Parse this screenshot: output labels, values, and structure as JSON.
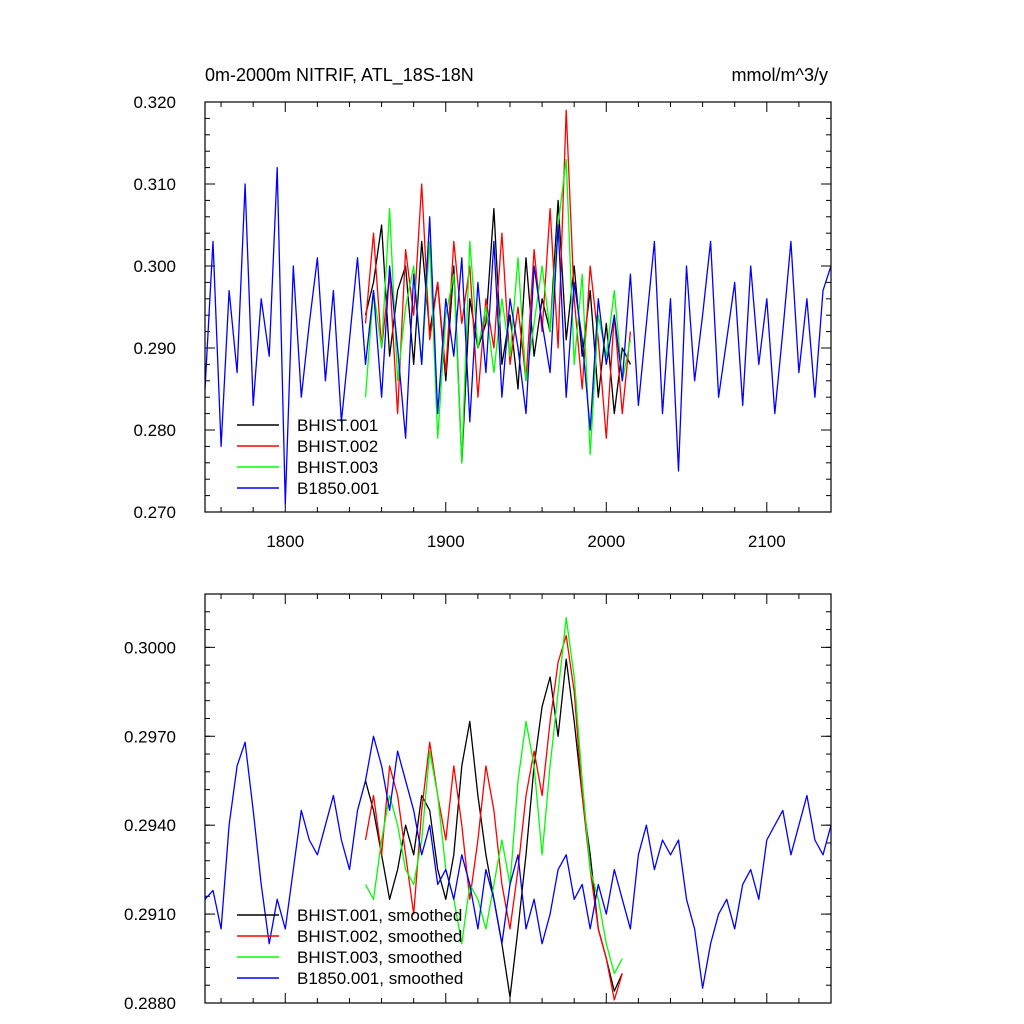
{
  "chart_data": [
    {
      "type": "line",
      "title": "0m-2000m NITRIF, ATL_18S-18N",
      "units": "mmol/m^3/y",
      "xlim": [
        1750,
        2140
      ],
      "ylim": [
        0.27,
        0.32
      ],
      "xticks": [
        1800,
        1900,
        2000,
        2100
      ],
      "xtick_labels": [
        "1800",
        "1900",
        "2000",
        "2100"
      ],
      "yticks": [
        0.27,
        0.28,
        0.29,
        0.3,
        0.31,
        0.32
      ],
      "ytick_labels": [
        "0.270",
        "0.280",
        "0.290",
        "0.300",
        "0.310",
        "0.320"
      ],
      "grid": false,
      "legend_position": "bottom-left",
      "series": [
        {
          "name": "BHIST.001",
          "color": "#000000",
          "x": [
            1850,
            1855,
            1860,
            1865,
            1870,
            1875,
            1880,
            1885,
            1890,
            1895,
            1900,
            1905,
            1910,
            1915,
            1920,
            1925,
            1930,
            1935,
            1940,
            1945,
            1950,
            1955,
            1960,
            1965,
            1970,
            1975,
            1980,
            1985,
            1990,
            1995,
            2000,
            2005,
            2010,
            2015
          ],
          "values": [
            0.294,
            0.298,
            0.305,
            0.289,
            0.297,
            0.3,
            0.288,
            0.303,
            0.292,
            0.298,
            0.286,
            0.3,
            0.276,
            0.296,
            0.29,
            0.293,
            0.307,
            0.288,
            0.294,
            0.285,
            0.301,
            0.289,
            0.296,
            0.292,
            0.308,
            0.291,
            0.3,
            0.289,
            0.297,
            0.284,
            0.293,
            0.282,
            0.29,
            0.288
          ]
        },
        {
          "name": "BHIST.002",
          "color": "#ff0000",
          "x": [
            1850,
            1855,
            1860,
            1865,
            1870,
            1875,
            1880,
            1885,
            1890,
            1895,
            1900,
            1905,
            1910,
            1915,
            1920,
            1925,
            1930,
            1935,
            1940,
            1945,
            1950,
            1955,
            1960,
            1965,
            1970,
            1975,
            1980,
            1985,
            1990,
            1995,
            2000,
            2005,
            2010,
            2015
          ],
          "values": [
            0.293,
            0.304,
            0.29,
            0.299,
            0.282,
            0.302,
            0.294,
            0.31,
            0.291,
            0.298,
            0.287,
            0.303,
            0.293,
            0.3,
            0.284,
            0.296,
            0.29,
            0.304,
            0.288,
            0.295,
            0.286,
            0.302,
            0.292,
            0.307,
            0.29,
            0.319,
            0.296,
            0.285,
            0.3,
            0.291,
            0.279,
            0.294,
            0.282,
            0.292
          ]
        },
        {
          "name": "BHIST.003",
          "color": "#00ff00",
          "x": [
            1850,
            1855,
            1860,
            1865,
            1870,
            1875,
            1880,
            1885,
            1890,
            1895,
            1900,
            1905,
            1910,
            1915,
            1920,
            1925,
            1930,
            1935,
            1940,
            1945,
            1950,
            1955,
            1960,
            1965,
            1970,
            1975,
            1980,
            1985,
            1990,
            1995,
            2000,
            2005,
            2010,
            2015
          ],
          "values": [
            0.284,
            0.297,
            0.29,
            0.307,
            0.286,
            0.295,
            0.3,
            0.288,
            0.303,
            0.279,
            0.294,
            0.299,
            0.276,
            0.303,
            0.29,
            0.295,
            0.287,
            0.296,
            0.289,
            0.301,
            0.286,
            0.293,
            0.3,
            0.292,
            0.305,
            0.313,
            0.288,
            0.299,
            0.277,
            0.294,
            0.289,
            0.297,
            0.286,
            0.291
          ]
        },
        {
          "name": "B1850.001",
          "color": "#0000ff",
          "x": [
            1750,
            1755,
            1760,
            1765,
            1770,
            1775,
            1780,
            1785,
            1790,
            1795,
            1800,
            1805,
            1810,
            1815,
            1820,
            1825,
            1830,
            1835,
            1840,
            1845,
            1850,
            1855,
            1860,
            1865,
            1870,
            1875,
            1880,
            1885,
            1890,
            1895,
            1900,
            1905,
            1910,
            1915,
            1920,
            1925,
            1930,
            1935,
            1940,
            1945,
            1950,
            1955,
            1960,
            1965,
            1970,
            1975,
            1980,
            1985,
            1990,
            1995,
            2000,
            2005,
            2010,
            2015,
            2020,
            2025,
            2030,
            2035,
            2040,
            2045,
            2050,
            2055,
            2060,
            2065,
            2070,
            2075,
            2080,
            2085,
            2090,
            2095,
            2100,
            2105,
            2110,
            2115,
            2120,
            2125,
            2130,
            2135,
            2140
          ],
          "values": [
            0.285,
            0.303,
            0.278,
            0.297,
            0.287,
            0.31,
            0.283,
            0.296,
            0.289,
            0.312,
            0.271,
            0.3,
            0.284,
            0.293,
            0.301,
            0.286,
            0.297,
            0.281,
            0.291,
            0.301,
            0.288,
            0.297,
            0.284,
            0.3,
            0.29,
            0.279,
            0.299,
            0.288,
            0.306,
            0.282,
            0.296,
            0.289,
            0.301,
            0.281,
            0.298,
            0.287,
            0.303,
            0.284,
            0.296,
            0.29,
            0.282,
            0.3,
            0.293,
            0.287,
            0.305,
            0.284,
            0.298,
            0.291,
            0.28,
            0.296,
            0.288,
            0.294,
            0.286,
            0.299,
            0.283,
            0.293,
            0.303,
            0.282,
            0.296,
            0.275,
            0.3,
            0.286,
            0.294,
            0.303,
            0.284,
            0.291,
            0.298,
            0.283,
            0.3,
            0.288,
            0.296,
            0.282,
            0.292,
            0.303,
            0.287,
            0.296,
            0.284,
            0.297,
            0.3
          ]
        }
      ],
      "legend": [
        "BHIST.001",
        "BHIST.002",
        "BHIST.003",
        "B1850.001"
      ]
    },
    {
      "type": "line",
      "xlim": [
        1750,
        2140
      ],
      "ylim": [
        0.288,
        0.3018
      ],
      "xticks": [
        1800,
        1900,
        2000,
        2100
      ],
      "yticks": [
        0.288,
        0.291,
        0.294,
        0.297,
        0.3
      ],
      "ytick_labels": [
        "0.2880",
        "0.2910",
        "0.2940",
        "0.2970",
        "0.3000"
      ],
      "grid": false,
      "legend_position": "bottom-left",
      "series": [
        {
          "name": "BHIST.001, smoothed",
          "color": "#000000",
          "x": [
            1850,
            1855,
            1860,
            1865,
            1870,
            1875,
            1880,
            1885,
            1890,
            1895,
            1900,
            1905,
            1910,
            1915,
            1920,
            1925,
            1930,
            1935,
            1940,
            1945,
            1950,
            1955,
            1960,
            1965,
            1970,
            1975,
            1980,
            1985,
            1990,
            1995,
            2000,
            2005,
            2010
          ],
          "values": [
            0.2955,
            0.2945,
            0.293,
            0.2915,
            0.2925,
            0.294,
            0.293,
            0.295,
            0.2945,
            0.2925,
            0.2915,
            0.293,
            0.296,
            0.2975,
            0.295,
            0.293,
            0.2915,
            0.29,
            0.2882,
            0.2905,
            0.293,
            0.296,
            0.298,
            0.299,
            0.297,
            0.2996,
            0.2975,
            0.295,
            0.293,
            0.2905,
            0.2895,
            0.2884,
            0.289
          ]
        },
        {
          "name": "BHIST.002, smoothed",
          "color": "#ff0000",
          "x": [
            1850,
            1855,
            1860,
            1865,
            1870,
            1875,
            1880,
            1885,
            1890,
            1895,
            1900,
            1905,
            1910,
            1915,
            1920,
            1925,
            1930,
            1935,
            1940,
            1945,
            1950,
            1955,
            1960,
            1965,
            1970,
            1975,
            1980,
            1985,
            1990,
            1995,
            2000,
            2005,
            2010
          ],
          "values": [
            0.2935,
            0.295,
            0.293,
            0.296,
            0.295,
            0.293,
            0.291,
            0.2945,
            0.2968,
            0.295,
            0.2935,
            0.296,
            0.294,
            0.2915,
            0.2935,
            0.296,
            0.2945,
            0.292,
            0.2905,
            0.2925,
            0.295,
            0.2965,
            0.295,
            0.2975,
            0.2995,
            0.3004,
            0.2985,
            0.295,
            0.2925,
            0.2905,
            0.2895,
            0.2881,
            0.289
          ]
        },
        {
          "name": "BHIST.003, smoothed",
          "color": "#00ff00",
          "x": [
            1850,
            1855,
            1860,
            1865,
            1870,
            1875,
            1880,
            1885,
            1890,
            1895,
            1900,
            1905,
            1910,
            1915,
            1920,
            1925,
            1930,
            1935,
            1940,
            1945,
            1950,
            1955,
            1960,
            1965,
            1970,
            1975,
            1980,
            1985,
            1990,
            1995,
            2000,
            2005,
            2010
          ],
          "values": [
            0.292,
            0.2915,
            0.2935,
            0.295,
            0.294,
            0.2925,
            0.292,
            0.2935,
            0.2965,
            0.295,
            0.2925,
            0.2915,
            0.29,
            0.292,
            0.2915,
            0.2905,
            0.292,
            0.2935,
            0.292,
            0.2955,
            0.2975,
            0.296,
            0.293,
            0.296,
            0.2985,
            0.301,
            0.299,
            0.2955,
            0.2925,
            0.2915,
            0.29,
            0.289,
            0.2895
          ]
        },
        {
          "name": "B1850.001, smoothed",
          "color": "#0000ff",
          "x": [
            1750,
            1755,
            1760,
            1765,
            1770,
            1775,
            1780,
            1785,
            1790,
            1795,
            1800,
            1805,
            1810,
            1815,
            1820,
            1825,
            1830,
            1835,
            1840,
            1845,
            1850,
            1855,
            1860,
            1865,
            1870,
            1875,
            1880,
            1885,
            1890,
            1895,
            1900,
            1905,
            1910,
            1915,
            1920,
            1925,
            1930,
            1935,
            1940,
            1945,
            1950,
            1955,
            1960,
            1965,
            1970,
            1975,
            1980,
            1985,
            1990,
            1995,
            2000,
            2005,
            2010,
            2015,
            2020,
            2025,
            2030,
            2035,
            2040,
            2045,
            2050,
            2055,
            2060,
            2065,
            2070,
            2075,
            2080,
            2085,
            2090,
            2095,
            2100,
            2105,
            2110,
            2115,
            2120,
            2125,
            2130,
            2135,
            2140
          ],
          "values": [
            0.2915,
            0.2918,
            0.2905,
            0.294,
            0.296,
            0.2968,
            0.2945,
            0.292,
            0.29,
            0.2915,
            0.2905,
            0.2925,
            0.2945,
            0.2935,
            0.293,
            0.294,
            0.295,
            0.2935,
            0.2925,
            0.2945,
            0.2955,
            0.297,
            0.296,
            0.2945,
            0.2965,
            0.2955,
            0.2945,
            0.293,
            0.294,
            0.292,
            0.2925,
            0.2915,
            0.293,
            0.292,
            0.2905,
            0.2925,
            0.2915,
            0.29,
            0.292,
            0.293,
            0.2905,
            0.2915,
            0.29,
            0.291,
            0.2925,
            0.293,
            0.2915,
            0.292,
            0.2905,
            0.292,
            0.291,
            0.2925,
            0.2915,
            0.2905,
            0.293,
            0.294,
            0.2925,
            0.2935,
            0.293,
            0.2935,
            0.2915,
            0.2905,
            0.2885,
            0.29,
            0.291,
            0.2915,
            0.2905,
            0.292,
            0.2925,
            0.2915,
            0.2935,
            0.294,
            0.2945,
            0.293,
            0.294,
            0.295,
            0.2935,
            0.293,
            0.294
          ]
        }
      ],
      "legend": [
        "BHIST.001, smoothed",
        "BHIST.002, smoothed",
        "BHIST.003, smoothed",
        "B1850.001, smoothed"
      ]
    }
  ]
}
